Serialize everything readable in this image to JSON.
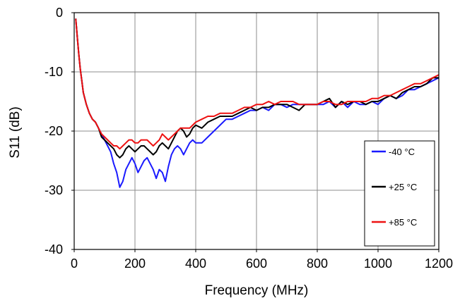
{
  "chart_data": {
    "type": "line",
    "title": "",
    "xlabel": "Frequency (MHz)",
    "ylabel": "S11 (dB)",
    "xlim": [
      0,
      1200
    ],
    "ylim": [
      -40,
      0
    ],
    "xticks": [
      0,
      200,
      400,
      600,
      800,
      1000,
      1200
    ],
    "yticks": [
      0,
      -10,
      -20,
      -30,
      -40
    ],
    "xtick_labels": [
      "0",
      "200",
      "400",
      "600",
      "800",
      "1000",
      "1200"
    ],
    "ytick_labels": [
      "0",
      "-10",
      "-20",
      "-30",
      "-40"
    ],
    "grid": true,
    "legend_position": "bottom-right",
    "series": [
      {
        "name": "-40 °C",
        "color": "#1a1aff",
        "points": [
          [
            5,
            -1
          ],
          [
            10,
            -4
          ],
          [
            15,
            -7
          ],
          [
            20,
            -9.5
          ],
          [
            25,
            -11.5
          ],
          [
            30,
            -13.5
          ],
          [
            40,
            -15.5
          ],
          [
            50,
            -17
          ],
          [
            60,
            -18
          ],
          [
            70,
            -18.5
          ],
          [
            80,
            -19.5
          ],
          [
            90,
            -20.5
          ],
          [
            100,
            -21.5
          ],
          [
            110,
            -22.5
          ],
          [
            120,
            -23.5
          ],
          [
            130,
            -25.5
          ],
          [
            140,
            -27
          ],
          [
            150,
            -29.5
          ],
          [
            160,
            -28.5
          ],
          [
            170,
            -26.5
          ],
          [
            180,
            -25.5
          ],
          [
            190,
            -24.5
          ],
          [
            200,
            -25.5
          ],
          [
            210,
            -27
          ],
          [
            220,
            -26
          ],
          [
            230,
            -25
          ],
          [
            240,
            -24.5
          ],
          [
            250,
            -25.5
          ],
          [
            260,
            -26.5
          ],
          [
            270,
            -28
          ],
          [
            280,
            -26.5
          ],
          [
            290,
            -27
          ],
          [
            300,
            -28.5
          ],
          [
            310,
            -26
          ],
          [
            320,
            -24
          ],
          [
            330,
            -23
          ],
          [
            340,
            -22.5
          ],
          [
            350,
            -23
          ],
          [
            360,
            -24
          ],
          [
            370,
            -23
          ],
          [
            380,
            -22
          ],
          [
            390,
            -21.5
          ],
          [
            400,
            -22
          ],
          [
            420,
            -22
          ],
          [
            440,
            -21
          ],
          [
            460,
            -20
          ],
          [
            480,
            -19
          ],
          [
            500,
            -18
          ],
          [
            520,
            -18
          ],
          [
            540,
            -17.5
          ],
          [
            560,
            -17
          ],
          [
            580,
            -16.5
          ],
          [
            600,
            -16.5
          ],
          [
            620,
            -16
          ],
          [
            640,
            -16.5
          ],
          [
            660,
            -15.5
          ],
          [
            680,
            -15.5
          ],
          [
            700,
            -16
          ],
          [
            720,
            -15.5
          ],
          [
            740,
            -15.5
          ],
          [
            760,
            -15.5
          ],
          [
            780,
            -15.5
          ],
          [
            800,
            -15.5
          ],
          [
            820,
            -15.5
          ],
          [
            840,
            -15
          ],
          [
            860,
            -16
          ],
          [
            880,
            -15
          ],
          [
            900,
            -16
          ],
          [
            920,
            -15
          ],
          [
            940,
            -15.5
          ],
          [
            960,
            -15.5
          ],
          [
            980,
            -15
          ],
          [
            1000,
            -15.5
          ],
          [
            1020,
            -14.5
          ],
          [
            1040,
            -14
          ],
          [
            1060,
            -14.5
          ],
          [
            1080,
            -14
          ],
          [
            1100,
            -13
          ],
          [
            1120,
            -13
          ],
          [
            1140,
            -12.5
          ],
          [
            1160,
            -12
          ],
          [
            1180,
            -11.5
          ],
          [
            1200,
            -11
          ]
        ]
      },
      {
        "name": "+25 °C",
        "color": "#000000",
        "points": [
          [
            5,
            -1
          ],
          [
            10,
            -4
          ],
          [
            15,
            -7
          ],
          [
            20,
            -9.5
          ],
          [
            25,
            -11.5
          ],
          [
            30,
            -13.5
          ],
          [
            40,
            -15.5
          ],
          [
            50,
            -17
          ],
          [
            60,
            -18
          ],
          [
            70,
            -18.5
          ],
          [
            80,
            -19.5
          ],
          [
            90,
            -21
          ],
          [
            100,
            -21.5
          ],
          [
            110,
            -22
          ],
          [
            120,
            -22.5
          ],
          [
            130,
            -23
          ],
          [
            140,
            -24
          ],
          [
            150,
            -24.5
          ],
          [
            160,
            -24
          ],
          [
            170,
            -23
          ],
          [
            180,
            -22.5
          ],
          [
            190,
            -23
          ],
          [
            200,
            -23.5
          ],
          [
            210,
            -23
          ],
          [
            220,
            -22.5
          ],
          [
            230,
            -22.5
          ],
          [
            240,
            -23
          ],
          [
            250,
            -23.5
          ],
          [
            260,
            -24
          ],
          [
            270,
            -23.5
          ],
          [
            280,
            -22.5
          ],
          [
            290,
            -22
          ],
          [
            300,
            -22.5
          ],
          [
            310,
            -23
          ],
          [
            320,
            -22
          ],
          [
            330,
            -21
          ],
          [
            340,
            -20
          ],
          [
            350,
            -19.5
          ],
          [
            360,
            -20
          ],
          [
            370,
            -21
          ],
          [
            380,
            -20.5
          ],
          [
            390,
            -19.5
          ],
          [
            400,
            -19
          ],
          [
            420,
            -19.5
          ],
          [
            440,
            -18.5
          ],
          [
            460,
            -18
          ],
          [
            480,
            -17.5
          ],
          [
            500,
            -17.5
          ],
          [
            520,
            -17.5
          ],
          [
            540,
            -17
          ],
          [
            560,
            -16.5
          ],
          [
            580,
            -16
          ],
          [
            600,
            -16.5
          ],
          [
            620,
            -16
          ],
          [
            640,
            -16
          ],
          [
            660,
            -15.5
          ],
          [
            680,
            -15.5
          ],
          [
            700,
            -15.5
          ],
          [
            720,
            -16
          ],
          [
            740,
            -16.5
          ],
          [
            760,
            -15.5
          ],
          [
            780,
            -15.5
          ],
          [
            800,
            -15.5
          ],
          [
            820,
            -15
          ],
          [
            840,
            -14.5
          ],
          [
            860,
            -16
          ],
          [
            880,
            -15
          ],
          [
            900,
            -15.5
          ],
          [
            920,
            -15
          ],
          [
            940,
            -15
          ],
          [
            960,
            -15.5
          ],
          [
            980,
            -15
          ],
          [
            1000,
            -15
          ],
          [
            1020,
            -14.5
          ],
          [
            1040,
            -14
          ],
          [
            1060,
            -14.5
          ],
          [
            1080,
            -13.5
          ],
          [
            1100,
            -13
          ],
          [
            1120,
            -12.5
          ],
          [
            1140,
            -12.5
          ],
          [
            1160,
            -12
          ],
          [
            1180,
            -11
          ],
          [
            1200,
            -11
          ]
        ]
      },
      {
        "name": "+85 °C",
        "color": "#ee1111",
        "points": [
          [
            5,
            -1
          ],
          [
            10,
            -4
          ],
          [
            15,
            -7
          ],
          [
            20,
            -9.5
          ],
          [
            25,
            -11.5
          ],
          [
            30,
            -13.5
          ],
          [
            40,
            -15.5
          ],
          [
            50,
            -17
          ],
          [
            60,
            -18
          ],
          [
            70,
            -18.5
          ],
          [
            80,
            -19.5
          ],
          [
            90,
            -20.5
          ],
          [
            100,
            -21
          ],
          [
            110,
            -21.5
          ],
          [
            120,
            -22
          ],
          [
            130,
            -22.5
          ],
          [
            140,
            -22.5
          ],
          [
            150,
            -23
          ],
          [
            160,
            -22.5
          ],
          [
            170,
            -22
          ],
          [
            180,
            -21.5
          ],
          [
            190,
            -21.5
          ],
          [
            200,
            -22
          ],
          [
            210,
            -22
          ],
          [
            220,
            -21.5
          ],
          [
            230,
            -21.5
          ],
          [
            240,
            -21.5
          ],
          [
            250,
            -22
          ],
          [
            260,
            -22.5
          ],
          [
            270,
            -22
          ],
          [
            280,
            -21.5
          ],
          [
            290,
            -20.5
          ],
          [
            300,
            -21
          ],
          [
            310,
            -21.5
          ],
          [
            320,
            -21
          ],
          [
            330,
            -20.5
          ],
          [
            340,
            -20
          ],
          [
            350,
            -19.5
          ],
          [
            360,
            -19.5
          ],
          [
            370,
            -19.5
          ],
          [
            380,
            -19.5
          ],
          [
            390,
            -19
          ],
          [
            400,
            -18.5
          ],
          [
            420,
            -18
          ],
          [
            440,
            -17.5
          ],
          [
            460,
            -17.5
          ],
          [
            480,
            -17
          ],
          [
            500,
            -17
          ],
          [
            520,
            -17
          ],
          [
            540,
            -16.5
          ],
          [
            560,
            -16
          ],
          [
            580,
            -16
          ],
          [
            600,
            -15.5
          ],
          [
            620,
            -15.5
          ],
          [
            640,
            -15
          ],
          [
            660,
            -15.5
          ],
          [
            680,
            -15
          ],
          [
            700,
            -15
          ],
          [
            720,
            -15
          ],
          [
            740,
            -15.5
          ],
          [
            760,
            -15.5
          ],
          [
            780,
            -15.5
          ],
          [
            800,
            -15.5
          ],
          [
            820,
            -15
          ],
          [
            840,
            -15
          ],
          [
            860,
            -15.5
          ],
          [
            880,
            -15.5
          ],
          [
            900,
            -15
          ],
          [
            920,
            -15
          ],
          [
            940,
            -15
          ],
          [
            960,
            -15
          ],
          [
            980,
            -14.5
          ],
          [
            1000,
            -14.5
          ],
          [
            1020,
            -14
          ],
          [
            1040,
            -14
          ],
          [
            1060,
            -13.5
          ],
          [
            1080,
            -13
          ],
          [
            1100,
            -12.5
          ],
          [
            1120,
            -12
          ],
          [
            1140,
            -12
          ],
          [
            1160,
            -11.5
          ],
          [
            1180,
            -11
          ],
          [
            1200,
            -10.5
          ]
        ]
      }
    ]
  }
}
